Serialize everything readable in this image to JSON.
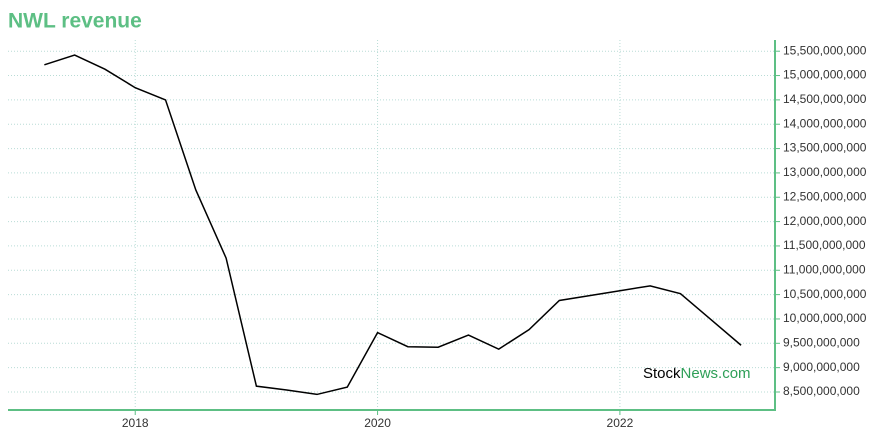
{
  "chart_data": {
    "type": "line",
    "title": "NWL revenue",
    "watermark": [
      "Stock",
      "News.com"
    ],
    "x": [
      2017.25,
      2017.5,
      2017.75,
      2018,
      2018.25,
      2018.5,
      2018.75,
      2019,
      2019.25,
      2019.5,
      2019.75,
      2020,
      2020.25,
      2020.5,
      2020.75,
      2021,
      2021.25,
      2021.5,
      2021.75,
      2022,
      2022.25,
      2022.5,
      2022.75,
      2023
    ],
    "series": [
      {
        "name": "NWL revenue",
        "color": "#000000",
        "values": [
          15220000000,
          15420000000,
          15130000000,
          14750000000,
          14500000000,
          12650000000,
          11250000000,
          8620000000,
          8540000000,
          8450000000,
          8600000000,
          9720000000,
          9430000000,
          9420000000,
          9670000000,
          9380000000,
          9780000000,
          10380000000,
          10480000000,
          10580000000,
          10680000000,
          10520000000,
          9990000000,
          9460000000
        ]
      }
    ],
    "xlim": [
      2016.95,
      2023.28
    ],
    "xticks": [
      2018,
      2020,
      2022
    ],
    "ylim": [
      8130000000,
      15730000000
    ],
    "yticks": [
      {
        "value": 8500000000,
        "label": "8,500,000,000"
      },
      {
        "value": 9000000000,
        "label": "9,000,000,000"
      },
      {
        "value": 9500000000,
        "label": "9,500,000,000"
      },
      {
        "value": 10000000000,
        "label": "10,000,000,000"
      },
      {
        "value": 10500000000,
        "label": "10,500,000,000"
      },
      {
        "value": 11000000000,
        "label": "11,000,000,000"
      },
      {
        "value": 11500000000,
        "label": "11,500,000,000"
      },
      {
        "value": 12000000000,
        "label": "12,000,000,000"
      },
      {
        "value": 12500000000,
        "label": "12,500,000,000"
      },
      {
        "value": 13000000000,
        "label": "13,000,000,000"
      },
      {
        "value": 13500000000,
        "label": "13,500,000,000"
      },
      {
        "value": 14000000000,
        "label": "14,000,000,000"
      },
      {
        "value": 14500000000,
        "label": "14,500,000,000"
      },
      {
        "value": 15000000000,
        "label": "15,000,000,000"
      },
      {
        "value": 15500000000,
        "label": "15,500,000,000"
      }
    ],
    "grid": true,
    "axis_color": "#5dbf84"
  }
}
